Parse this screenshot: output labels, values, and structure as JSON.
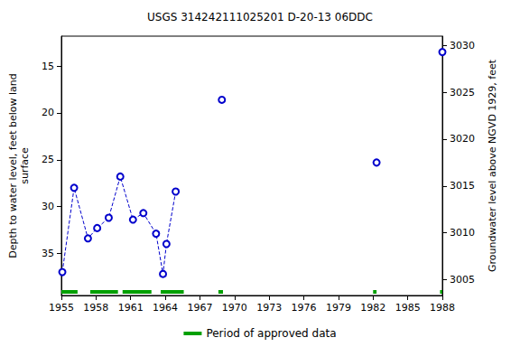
{
  "chart_data": {
    "type": "scatter",
    "title": "USGS 314242111025201 D-20-13 06DDC",
    "ylabel": [
      "Depth to water level, feet below land",
      "surface"
    ],
    "y2label": "Groundwater level above NGVD 1929, feet",
    "xlim": [
      1955,
      1988
    ],
    "xticks": [
      1955,
      1958,
      1961,
      1964,
      1967,
      1970,
      1973,
      1976,
      1979,
      1982,
      1985,
      1988
    ],
    "ylim": [
      39.5,
      11.8
    ],
    "yticks": [
      15,
      20,
      25,
      30,
      35
    ],
    "y2lim": [
      3003.3,
      3031
    ],
    "y2ticks": [
      3005,
      3010,
      3015,
      3020,
      3025,
      3030
    ],
    "grid": false,
    "legend": "bottom",
    "series": [
      {
        "type": "line",
        "color": "#0000cc",
        "marker": "circle-open",
        "line_style": "dashed",
        "x": [
          1955.08,
          1956.1,
          1957.3,
          1958.1,
          1959.1,
          1960.1,
          1961.2,
          1962.1,
          1963.2,
          1963.8,
          1964.1,
          1964.9,
          null,
          1968.9,
          null,
          1982.3,
          null,
          1988.0
        ],
        "values": [
          37.0,
          28.0,
          33.4,
          32.3,
          31.2,
          26.8,
          31.4,
          30.7,
          32.9,
          37.2,
          34.0,
          28.4,
          null,
          18.6,
          null,
          25.3,
          null,
          13.5
        ]
      },
      {
        "name": "Period of approved data",
        "type": "period",
        "color": "#00a000",
        "ranges": [
          [
            1955.0,
            1956.4
          ],
          [
            1957.5,
            1959.9
          ],
          [
            1960.3,
            1962.8
          ],
          [
            1963.6,
            1965.6
          ],
          [
            1968.6,
            1969.0
          ],
          [
            1982.0,
            1982.3
          ],
          [
            1987.8,
            1988.0
          ]
        ]
      }
    ]
  }
}
